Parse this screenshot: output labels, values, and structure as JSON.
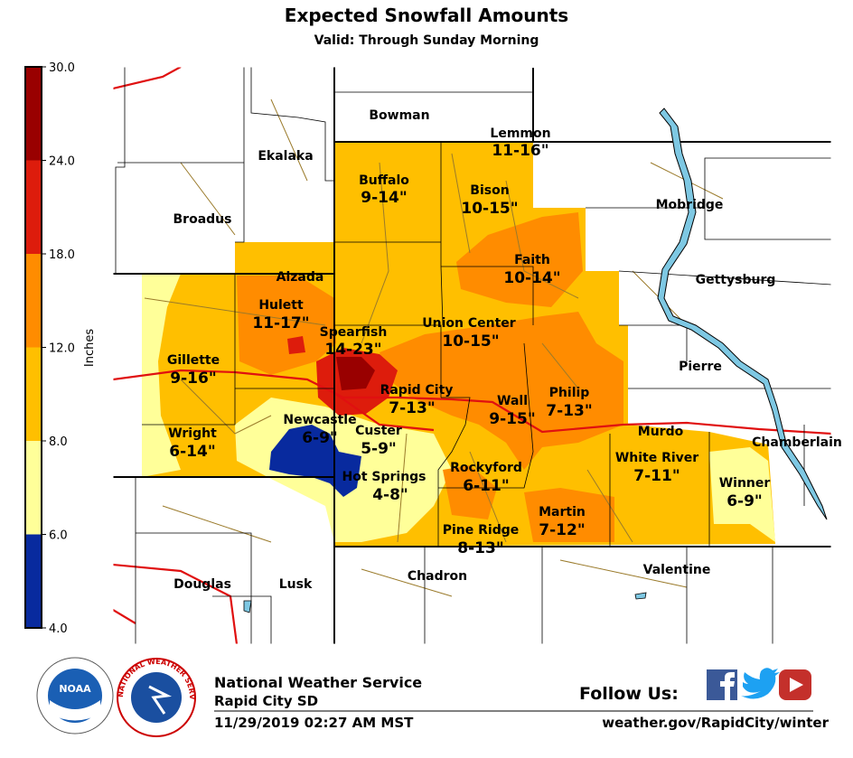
{
  "header": {
    "title": "Expected Snowfall Amounts",
    "subtitle": "Valid: Through Sunday Morning"
  },
  "legend": {
    "label": "Inches",
    "ticks": [
      {
        "value": 30,
        "label": "30.0"
      },
      {
        "value": 24,
        "label": "24.0"
      },
      {
        "value": 18,
        "label": "18.0"
      },
      {
        "value": 12,
        "label": "12.0"
      },
      {
        "value": 8,
        "label": "8.0"
      },
      {
        "value": 6,
        "label": "6.0"
      },
      {
        "value": 4,
        "label": "4.0"
      }
    ],
    "colors": [
      "#990000",
      "#dd1c0c",
      "#ff8c00",
      "#ffbf00",
      "#ffff99",
      "#082a9e"
    ]
  },
  "places": {
    "bowman": "Bowman",
    "lemmon": "Lemmon",
    "ekalaka": "Ekalaka",
    "buffalo": "Buffalo",
    "bison": "Bison",
    "broadus": "Broadus",
    "mobridge": "Mobridge",
    "faith": "Faith",
    "alzada": "Alzada",
    "gettysburg": "Gettysburg",
    "hulett": "Hulett",
    "union_center": "Union Center",
    "spearfish": "Spearfish",
    "gillette": "Gillette",
    "pierre": "Pierre",
    "rapid_city": "Rapid City",
    "philip": "Philip",
    "wall": "Wall",
    "newcastle": "Newcastle",
    "custer": "Custer",
    "murdo": "Murdo",
    "wright": "Wright",
    "chamberlain": "Chamberlain",
    "white_river": "White River",
    "rockyford": "Rockyford",
    "hot_springs": "Hot Springs",
    "winner": "Winner",
    "martin": "Martin",
    "pine_ridge": "Pine Ridge",
    "douglas": "Douglas",
    "lusk": "Lusk",
    "chadron": "Chadron",
    "valentine": "Valentine"
  },
  "amounts": {
    "lemmon": "11-16\"",
    "buffalo": "9-14\"",
    "bison": "10-15\"",
    "faith": "10-14\"",
    "hulett": "11-17\"",
    "union_center": "10-15\"",
    "spearfish": "14-23\"",
    "gillette": "9-16\"",
    "rapid_city": "7-13\"",
    "philip": "7-13\"",
    "wall": "9-15\"",
    "newcastle": "6-9\"",
    "custer": "5-9\"",
    "wright": "6-14\"",
    "white_river": "7-11\"",
    "rockyford": "6-11\"",
    "hot_springs": "4-8\"",
    "winner": "6-9\"",
    "martin": "7-12\"",
    "pine_ridge": "8-13\""
  },
  "footer": {
    "agency": "National Weather Service",
    "office": "Rapid City SD",
    "issued": "11/29/2019 02:27 AM MST",
    "follow": "Follow Us:",
    "url": "weather.gov/RapidCity/winter",
    "noaa_logo": "NOAA",
    "nws_logo": "NATIONAL WEATHER SERVICE"
  }
}
